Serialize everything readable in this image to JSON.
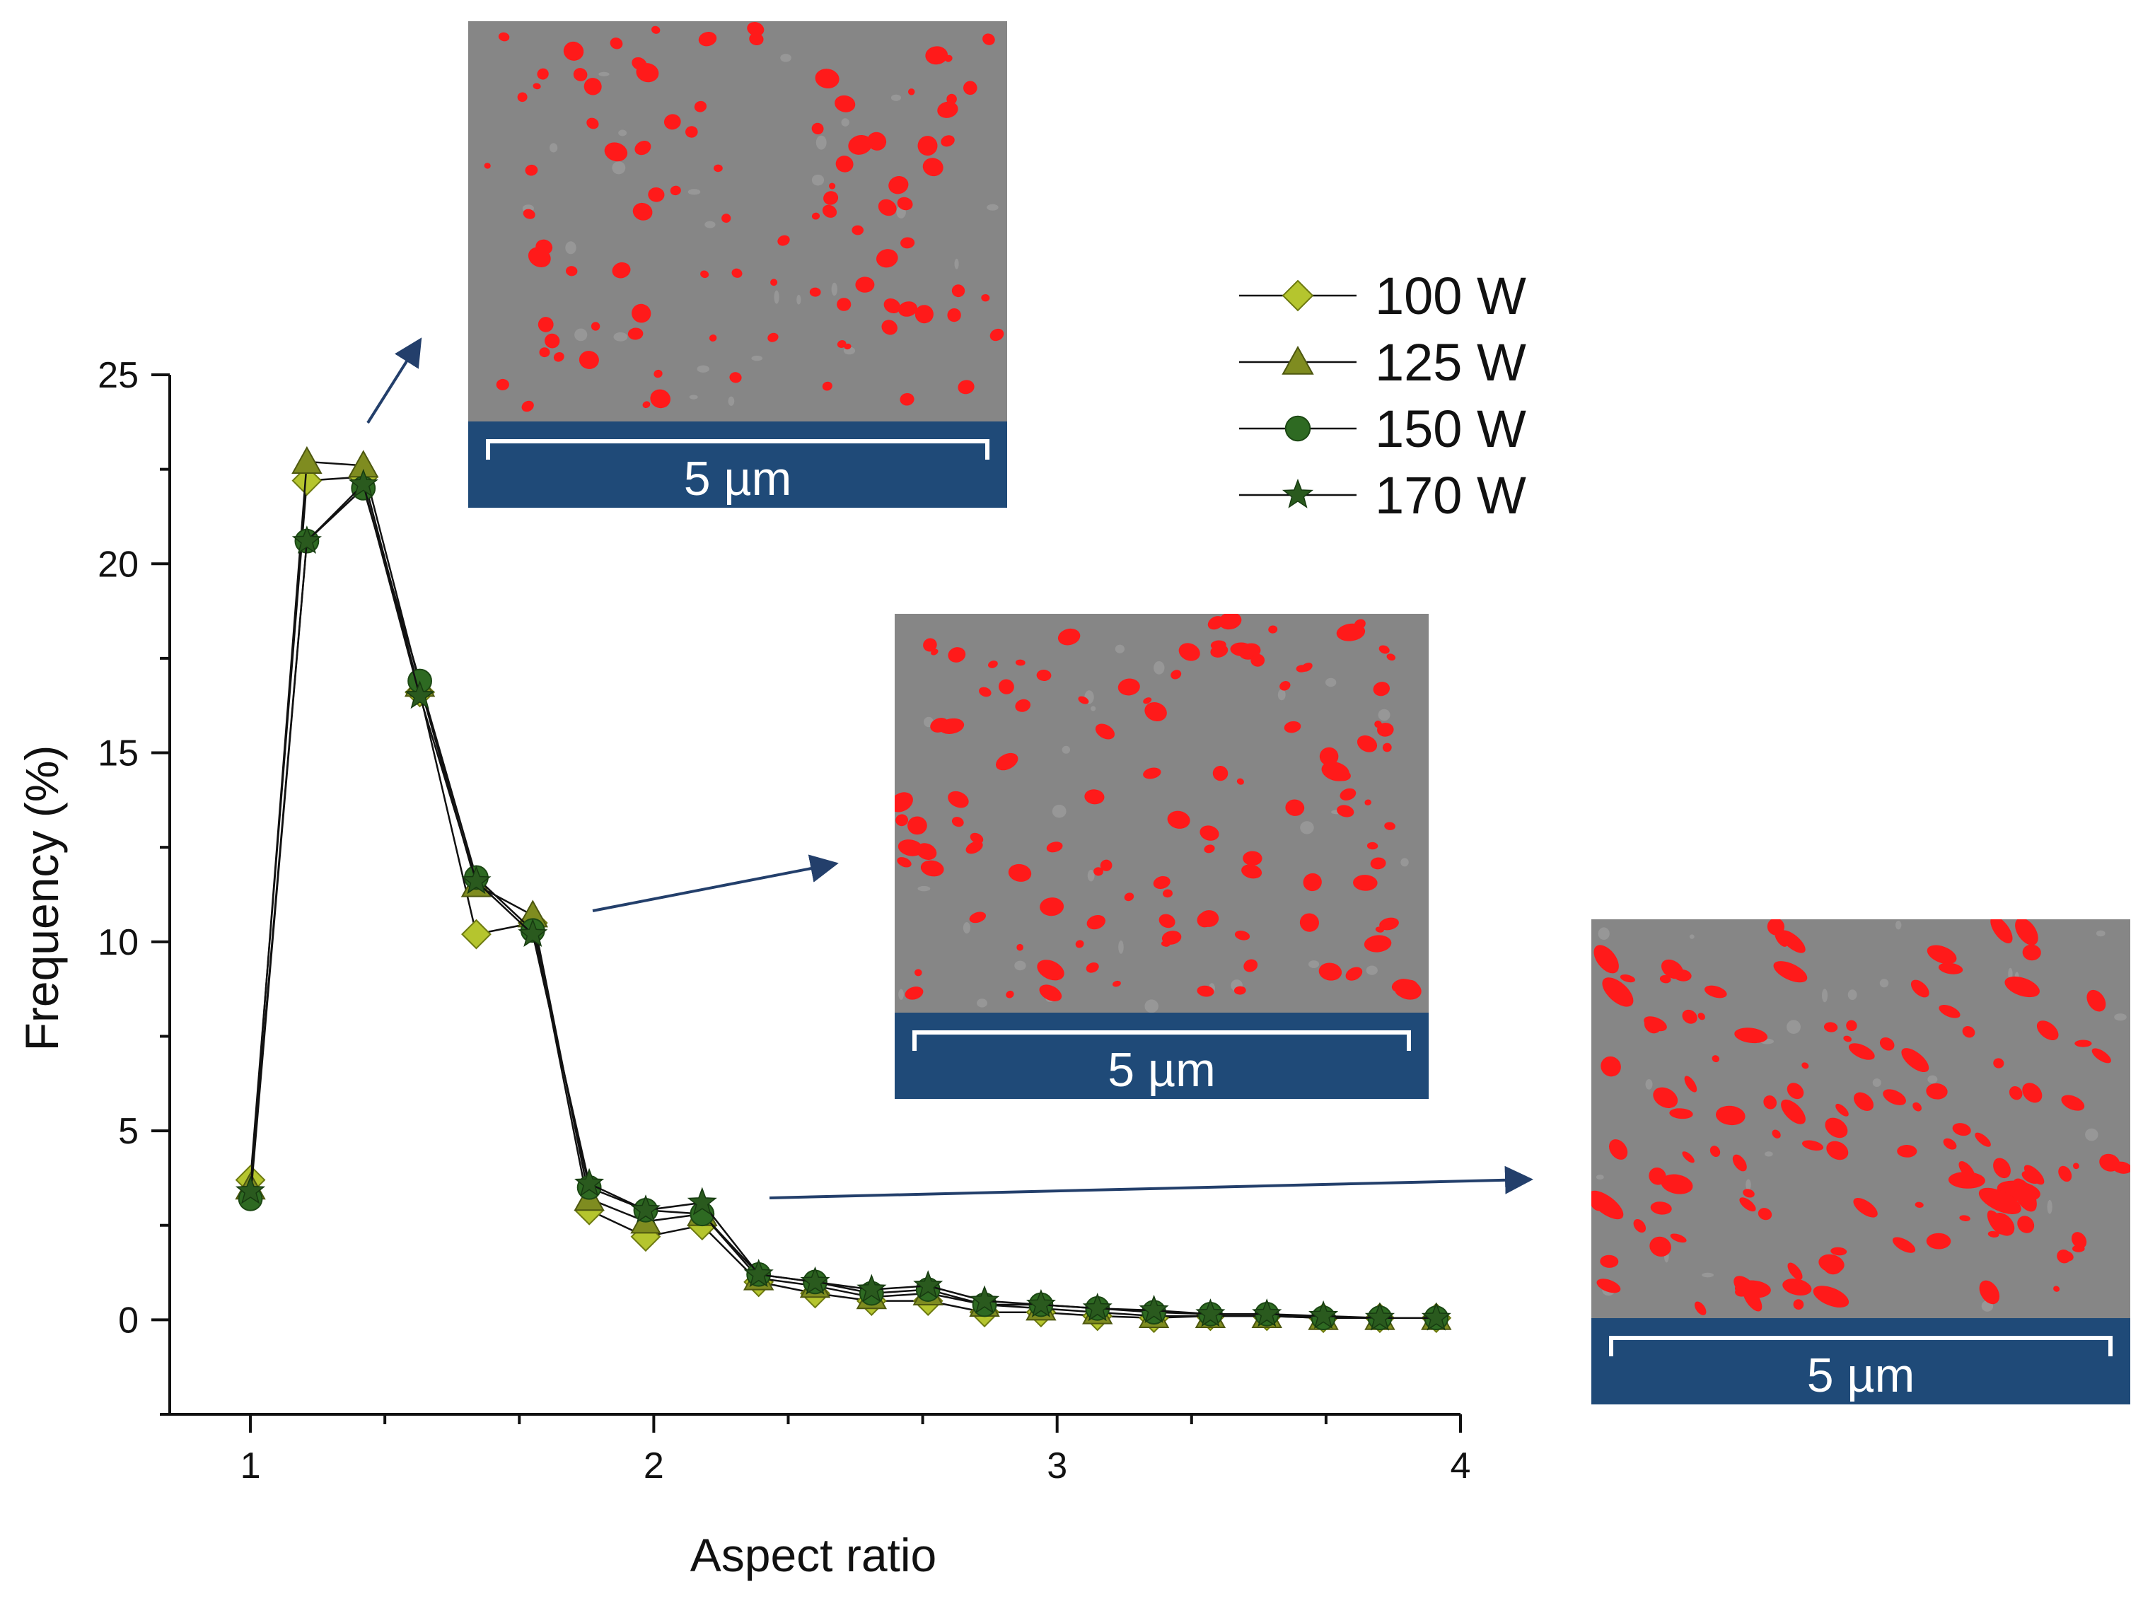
{
  "chart_data": {
    "type": "line",
    "title": "",
    "xlabel": "Aspect ratio",
    "ylabel": "Frequency (%)",
    "xlim": [
      0.8,
      4.0
    ],
    "ylim": [
      -2.5,
      25
    ],
    "xticks": [
      "1",
      "2",
      "3",
      "4"
    ],
    "yticks": [
      "0",
      "5",
      "10",
      "15",
      "20",
      "25"
    ],
    "grid": false,
    "legend_position": "top-right",
    "x": [
      1.0,
      1.14,
      1.28,
      1.42,
      1.56,
      1.7,
      1.84,
      1.98,
      2.12,
      2.26,
      2.4,
      2.54,
      2.68,
      2.82,
      2.96,
      3.1,
      3.24,
      3.38,
      3.52,
      3.66,
      3.8,
      3.94
    ],
    "series": [
      {
        "name": "100 W",
        "marker": "diamond",
        "color": "#b5c52e",
        "values": [
          3.7,
          22.2,
          22.3,
          16.6,
          10.2,
          10.5,
          2.9,
          2.2,
          2.5,
          1.0,
          0.7,
          0.5,
          0.5,
          0.2,
          0.2,
          0.1,
          0.05,
          0.1,
          0.1,
          0.05,
          0.05,
          0.05
        ]
      },
      {
        "name": "125 W",
        "marker": "triangle",
        "color": "#7f8c20",
        "values": [
          3.5,
          22.7,
          22.6,
          16.8,
          11.5,
          10.7,
          3.2,
          2.6,
          2.8,
          1.1,
          0.9,
          0.6,
          0.7,
          0.4,
          0.3,
          0.2,
          0.1,
          0.1,
          0.1,
          0.05,
          0.05,
          0.05
        ]
      },
      {
        "name": "150 W",
        "marker": "circle",
        "color": "#2e6a22",
        "values": [
          3.2,
          20.6,
          22.0,
          16.9,
          11.7,
          10.3,
          3.5,
          2.9,
          2.8,
          1.2,
          1.0,
          0.7,
          0.8,
          0.4,
          0.4,
          0.3,
          0.2,
          0.15,
          0.15,
          0.05,
          0.05,
          0.05
        ]
      },
      {
        "name": "170 W",
        "marker": "star",
        "color": "#2a5a1e",
        "values": [
          3.4,
          20.6,
          22.1,
          16.5,
          11.6,
          10.2,
          3.6,
          2.9,
          3.1,
          1.2,
          1.0,
          0.8,
          0.9,
          0.5,
          0.4,
          0.3,
          0.25,
          0.15,
          0.15,
          0.1,
          0.05,
          0.05
        ]
      }
    ]
  },
  "insets": [
    {
      "scale_label": "5 µm"
    },
    {
      "scale_label": "5 µm"
    },
    {
      "scale_label": "5 µm"
    }
  ],
  "colors": {
    "axis": "#111111",
    "line": "#111111",
    "arrow": "#233f6b",
    "scale_bar_bg": "#1f4a78",
    "micrograph_bg": "#868686",
    "particle": "#ff1a1a"
  }
}
